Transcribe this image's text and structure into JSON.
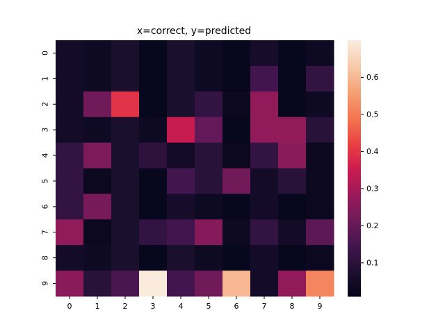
{
  "chart_data": {
    "type": "heatmap",
    "title": "x=correct, y=predicted",
    "xlabel": "",
    "ylabel": "",
    "x_categories": [
      "0",
      "1",
      "2",
      "3",
      "4",
      "5",
      "6",
      "7",
      "8",
      "9"
    ],
    "y_categories": [
      "0",
      "1",
      "2",
      "3",
      "4",
      "5",
      "6",
      "7",
      "8",
      "9"
    ],
    "values": [
      [
        0.05,
        0.04,
        0.07,
        0.02,
        0.07,
        0.04,
        0.02,
        0.06,
        0.02,
        0.04
      ],
      [
        0.05,
        0.04,
        0.07,
        0.02,
        0.07,
        0.04,
        0.02,
        0.15,
        0.02,
        0.12
      ],
      [
        0.05,
        0.22,
        0.4,
        0.02,
        0.07,
        0.12,
        0.03,
        0.27,
        0.02,
        0.04
      ],
      [
        0.05,
        0.04,
        0.07,
        0.04,
        0.35,
        0.2,
        0.02,
        0.27,
        0.27,
        0.1
      ],
      [
        0.12,
        0.24,
        0.07,
        0.11,
        0.05,
        0.1,
        0.03,
        0.12,
        0.26,
        0.03
      ],
      [
        0.12,
        0.03,
        0.07,
        0.02,
        0.15,
        0.1,
        0.22,
        0.05,
        0.1,
        0.03
      ],
      [
        0.12,
        0.23,
        0.07,
        0.02,
        0.06,
        0.04,
        0.02,
        0.05,
        0.02,
        0.03
      ],
      [
        0.27,
        0.03,
        0.07,
        0.12,
        0.15,
        0.25,
        0.04,
        0.12,
        0.05,
        0.19
      ],
      [
        0.05,
        0.04,
        0.07,
        0.02,
        0.07,
        0.04,
        0.02,
        0.05,
        0.02,
        0.03
      ],
      [
        0.26,
        0.1,
        0.16,
        0.7,
        0.15,
        0.22,
        0.6,
        0.05,
        0.27,
        0.52
      ]
    ],
    "vmin": 0.01,
    "vmax": 0.7,
    "colormap": "rocket",
    "colorbar_ticks": [
      0.1,
      0.2,
      0.3,
      0.4,
      0.5,
      0.6
    ],
    "colorbar_tick_labels": [
      "0.1",
      "0.2",
      "0.3",
      "0.4",
      "0.5",
      "0.6"
    ]
  }
}
